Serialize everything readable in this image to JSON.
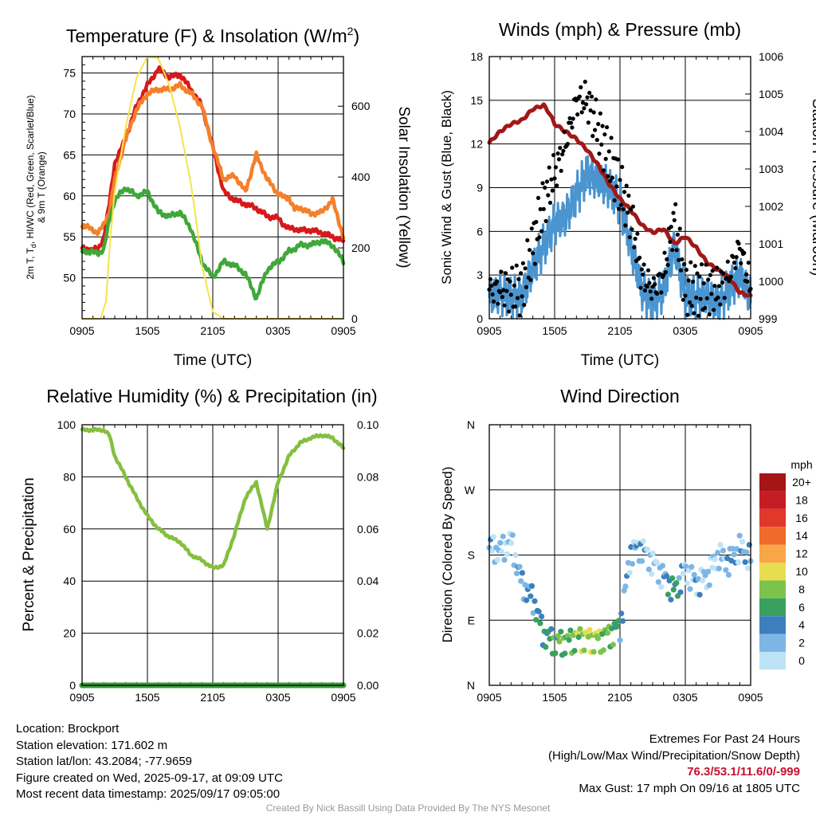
{
  "location": "Brockport",
  "info": {
    "location_line": "Location: Brockport",
    "elevation_line": "Station elevation: 171.602 m",
    "latlon_line": "Station lat/lon: 43.2084; -77.9659",
    "created_line": "Figure created on Wed, 2025-09-17, at 09:09 UTC",
    "recent_line": "Most recent data timestamp: 2025/09/17 09:05:00"
  },
  "extremes": {
    "title": "Extremes For Past 24 Hours",
    "subtitle": "(High/Low/Max Wind/Precipitation/Snow Depth)",
    "values": "76.3/53.1/11.6/0/-999",
    "max_gust": "Max Gust: 17 mph On 09/16 at 1805 UTC"
  },
  "credit": "Created By Nick Bassill Using Data Provided By The NYS Mesonet",
  "colors": {
    "temperature": "#d7191c",
    "temp_9m": "#f4802b",
    "dewpoint": "#3fa83a",
    "insolation": "#f7e34a",
    "wind": "#4a95d0",
    "gust": "#000000",
    "pressure": "#a01818",
    "rh": "#85bf3f",
    "precip": "#3a9a3a"
  },
  "chart_data": [
    {
      "type": "line",
      "title": "Temperature (F) & Insolation (W/m²)",
      "xlabel": "Time (UTC)",
      "ylabel_lines": [
        "2m T, T_d, HI/WC (Red, Green, Scarlet/Blue)",
        "& 9m T (Orange)"
      ],
      "ylabel2": "Solar Insolation (Yellow)",
      "x_ticks": [
        "0905",
        "1505",
        "2105",
        "0305",
        "0905"
      ],
      "ylim": [
        45,
        77
      ],
      "y_ticks": [
        50,
        55,
        60,
        65,
        70,
        75
      ],
      "y2lim": [
        0,
        740
      ],
      "y2_ticks": [
        0,
        200,
        400,
        600
      ],
      "x_hours": [
        0,
        1.5,
        2,
        2.5,
        3,
        4,
        5,
        6,
        7,
        8,
        9,
        10,
        11,
        12,
        13,
        14,
        15,
        16,
        17,
        18,
        18.5,
        19,
        19.5,
        20,
        21,
        22,
        23,
        24
      ],
      "series": [
        {
          "name": "2m T",
          "color": "#d7191c",
          "values": [
            53.5,
            53.5,
            55,
            59,
            64,
            67,
            71,
            73.5,
            75.5,
            74.5,
            74.8,
            73,
            71,
            66,
            60.5,
            59.5,
            59,
            58.5,
            57.5,
            57.3,
            56.5,
            56,
            56,
            55.8,
            55.8,
            55.5,
            55,
            54.5
          ]
        },
        {
          "name": "9m T",
          "color": "#f4802b",
          "values": [
            56.5,
            55.5,
            56.5,
            58,
            62,
            67,
            70.5,
            72.5,
            73,
            73,
            73.5,
            72.5,
            71,
            66,
            62,
            62.5,
            60.5,
            65,
            62,
            60.3,
            59.8,
            59.8,
            58.3,
            58.6,
            57.8,
            58,
            59.5,
            55
          ]
        },
        {
          "name": "T_d",
          "color": "#3fa83a",
          "values": [
            53.3,
            53,
            53.5,
            57,
            59.5,
            61,
            60,
            60.5,
            58,
            57.5,
            58,
            56,
            52,
            50,
            52,
            51.5,
            50.5,
            47.5,
            51,
            52,
            52.5,
            53.3,
            53.5,
            54,
            54,
            54.5,
            54,
            52
          ]
        },
        {
          "name": "Insolation",
          "color": "#f7e34a",
          "axis": "right",
          "x_hours": [
            0,
            1.7,
            2.2,
            2.6,
            3,
            4,
            5,
            6,
            7,
            8,
            9,
            10,
            10.6,
            11,
            12,
            13,
            14,
            24
          ],
          "values": [
            0,
            0,
            50,
            230,
            360,
            540,
            680,
            740,
            735,
            660,
            540,
            380,
            250,
            150,
            20,
            0,
            0,
            0
          ]
        }
      ]
    },
    {
      "type": "scatter+line",
      "title": "Winds (mph) & Pressure (mb)",
      "xlabel": "Time (UTC)",
      "ylabel": "Sonic Wind & Gust (Blue, Black)",
      "ylabel2": "Station Pressure (Maroon)",
      "x_ticks": [
        "0905",
        "1505",
        "2105",
        "0305",
        "0905"
      ],
      "ylim": [
        0,
        18
      ],
      "y_ticks": [
        0,
        3,
        6,
        9,
        12,
        15,
        18
      ],
      "y2lim": [
        999,
        1006
      ],
      "y2_ticks": [
        999,
        1000,
        1001,
        1002,
        1003,
        1004,
        1005,
        1006
      ],
      "wind": {
        "x_hours": [
          0,
          1,
          2,
          3,
          4,
          5,
          6,
          7,
          8,
          9,
          10,
          11,
          12,
          13,
          14,
          15,
          16,
          17,
          18,
          19,
          20,
          21,
          22,
          23,
          24
        ],
        "values": [
          1.5,
          1.8,
          1.5,
          1.5,
          3.5,
          5,
          6.5,
          7,
          8.5,
          10,
          9.5,
          9,
          8,
          5,
          2,
          1,
          2,
          5,
          1.5,
          1.5,
          1.5,
          1,
          2,
          3,
          1.5
        ]
      },
      "gust": {
        "x_hours": [
          0,
          1,
          2,
          3,
          4,
          5,
          6,
          7,
          8,
          9,
          10,
          11,
          12,
          13,
          14,
          15,
          16,
          17,
          18,
          19,
          20,
          21,
          22,
          23,
          24
        ],
        "values": [
          2,
          2,
          2,
          2,
          5,
          8,
          10,
          12,
          15,
          15,
          13,
          11,
          9,
          7,
          3,
          2,
          3,
          7,
          2,
          2,
          2,
          2,
          3,
          5,
          2
        ]
      },
      "pressure": {
        "x_hours": [
          0,
          1,
          2,
          3,
          4,
          5,
          5.5,
          6,
          7,
          8,
          9,
          10,
          11,
          12,
          13,
          14,
          15,
          16,
          17,
          18,
          19,
          20,
          21,
          22,
          23,
          24
        ],
        "values": [
          1003.7,
          1004,
          1004.2,
          1004.3,
          1004.6,
          1004.7,
          1004.5,
          1004.2,
          1004,
          1003.8,
          1003.5,
          1003.1,
          1002.6,
          1002.2,
          1001.9,
          1001.5,
          1001.3,
          1001.4,
          1001,
          1001.2,
          1000.9,
          1000.5,
          1000.3,
          1000.1,
          999.7,
          999.6
        ]
      }
    },
    {
      "type": "line",
      "title": "Relative Humidity (%) & Precipitation (in)",
      "ylabel": "Percent & Precipitation",
      "x_ticks": [
        "0905",
        "1505",
        "2105",
        "0305",
        "0905"
      ],
      "ylim": [
        0,
        100
      ],
      "y_ticks": [
        0,
        20,
        40,
        60,
        80,
        100
      ],
      "y2lim": [
        0,
        0.1
      ],
      "y2_ticks": [
        "0.00",
        "0.02",
        "0.04",
        "0.06",
        "0.08",
        "0.10"
      ],
      "series": [
        {
          "name": "RH",
          "color": "#85bf3f",
          "x_hours": [
            0,
            1,
            2,
            2.5,
            3,
            4,
            5,
            6,
            7,
            8,
            9,
            10,
            11,
            12,
            13,
            14,
            15,
            16,
            17,
            18,
            19,
            20,
            21,
            22,
            23,
            24
          ],
          "values": [
            98,
            98,
            98,
            96,
            88,
            80,
            72,
            65,
            60,
            57,
            55,
            50,
            48,
            45,
            46,
            58,
            72,
            78,
            60,
            78,
            88,
            93,
            95,
            96,
            95,
            91
          ]
        },
        {
          "name": "Precipitation",
          "color": "#3a9a3a",
          "axis": "right",
          "x_hours": [
            0,
            24
          ],
          "values": [
            0,
            0
          ]
        }
      ]
    },
    {
      "type": "scatter",
      "title": "Wind Direction",
      "ylabel": "Direction (Colored By Speed)",
      "x_ticks": [
        "0905",
        "1505",
        "2105",
        "0305",
        "0905"
      ],
      "y_ticks": [
        "N",
        "E",
        "S",
        "W",
        "N"
      ],
      "ylim_deg": [
        0,
        360
      ],
      "x_hours": [
        0,
        1,
        2,
        3,
        4,
        5,
        6,
        7,
        8,
        9,
        10,
        11,
        12,
        13,
        14,
        15,
        16,
        17,
        18,
        19,
        20,
        21,
        22,
        23,
        24
      ],
      "direction_deg": [
        190,
        185,
        200,
        140,
        120,
        70,
        60,
        60,
        65,
        65,
        62,
        70,
        80,
        185,
        190,
        170,
        150,
        130,
        160,
        140,
        150,
        180,
        170,
        190,
        175
      ],
      "speed": [
        2,
        1,
        1,
        3,
        3,
        5,
        6,
        7,
        8,
        9,
        8,
        7,
        4,
        2,
        2,
        1,
        2,
        6,
        1,
        2,
        1,
        1,
        3,
        2,
        2
      ],
      "legend": {
        "title": "mph",
        "labels": [
          "20+",
          "18",
          "16",
          "14",
          "12",
          "10",
          "8",
          "6",
          "4",
          "2",
          "0"
        ],
        "colors": [
          "#a51417",
          "#c51d23",
          "#e0382b",
          "#ef6a2b",
          "#f7a748",
          "#e8dd4f",
          "#7cc34b",
          "#38a160",
          "#3d7fbe",
          "#7db6e4",
          "#bde3f6"
        ]
      }
    }
  ]
}
